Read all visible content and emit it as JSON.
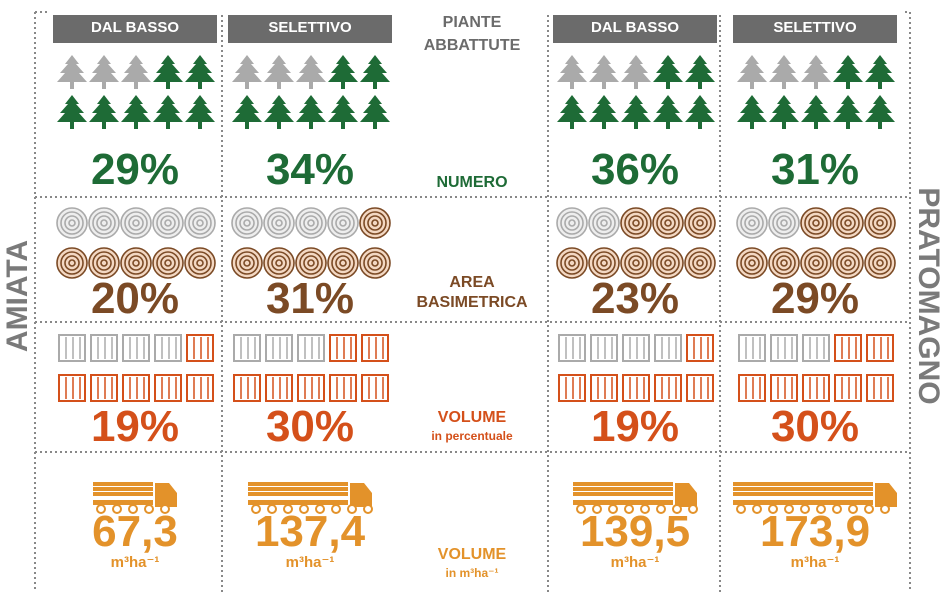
{
  "regions": [
    "AMIATA",
    "PRATOMAGNO"
  ],
  "header": {
    "columns": [
      "DAL BASSO",
      "SELETTIVO",
      "DAL BASSO",
      "SELETTIVO"
    ],
    "center_title": "PIANTE ABBATTUTE"
  },
  "rows": [
    {
      "label": "NUMERO",
      "values": [
        "29%",
        "34%",
        "36%",
        "31%"
      ]
    },
    {
      "label": "AREA BASIMETRICA",
      "values": [
        "20%",
        "31%",
        "23%",
        "29%"
      ]
    },
    {
      "label": "VOLUME",
      "sublabel": "in percentuale",
      "values": [
        "19%",
        "30%",
        "19%",
        "30%"
      ]
    },
    {
      "label": "VOLUME",
      "sublabel": "in m³ha⁻¹",
      "values": [
        "67,3",
        "137,4",
        "139,5",
        "173,9"
      ],
      "unit": "m³ha⁻¹"
    }
  ]
}
